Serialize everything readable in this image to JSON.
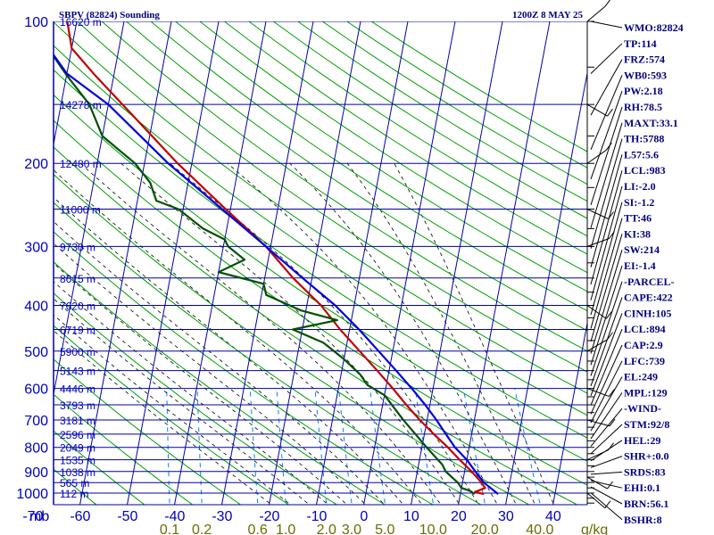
{
  "header": {
    "station": "SBPV (82824) Sounding",
    "time": "1200Z  8 MAY 25"
  },
  "indices": [
    "WMO:82824",
    "TP:114",
    "FRZ:574",
    "WB0:593",
    "PW:2.18",
    "RH:78.5",
    "MAXT:33.1",
    "TH:5788",
    "L57:5.6",
    "LCL:983",
    "LI:-2.0",
    "SI:-1.2",
    "TT:46",
    "KI:38",
    "SW:214",
    "EI:-1.4",
    "-PARCEL-",
    "CAPE:422",
    "CINH:105",
    "LCL:894",
    "CAP:2.9",
    "LFC:739",
    "EL:249",
    "MPL:129",
    "-WIND-",
    "STM:92/8",
    "HEL:29",
    "SHR+:0.0",
    "SRDS:83",
    "EHI:0.1",
    "BRN:56.1",
    "BSHR:8"
  ],
  "colors": {
    "isobar": "#0000a0",
    "isotherm": "#0000a0",
    "dry_adiabat": "#00a000",
    "moist_adiabat": "#000000",
    "mixing_ratio": "#0080ff",
    "temperature": "#c00000",
    "dewpoint": "#005000",
    "parcel": "#0000e0",
    "wind_barb": "#000000"
  },
  "chart_data": {
    "type": "skew-t log-p",
    "title": "SBPV (82824) Sounding",
    "xlabel": "",
    "ylabel": "mb",
    "pressure_levels": [
      100,
      200,
      300,
      400,
      500,
      600,
      700,
      800,
      900,
      1000
    ],
    "pressure_range": [
      100,
      1050
    ],
    "temperature_range": [
      -80,
      40
    ],
    "temperature_ticks": [
      -80,
      -70,
      -60,
      -50,
      -40,
      -30,
      -20,
      -10,
      0,
      10,
      20,
      30,
      40
    ],
    "height_labels": [
      {
        "p": 100,
        "label": "16620 m"
      },
      {
        "p": 150,
        "label": "14278 m"
      },
      {
        "p": 200,
        "label": "12480 m"
      },
      {
        "p": 250,
        "label": "11000 m"
      },
      {
        "p": 300,
        "label": "9730 m"
      },
      {
        "p": 350,
        "label": "8615 m"
      },
      {
        "p": 400,
        "label": "7620 m"
      },
      {
        "p": 450,
        "label": "6719 m"
      },
      {
        "p": 500,
        "label": "5900 m"
      },
      {
        "p": 550,
        "label": "5143 m"
      },
      {
        "p": 600,
        "label": "4446 m"
      },
      {
        "p": 650,
        "label": "3793 m"
      },
      {
        "p": 700,
        "label": "3181 m"
      },
      {
        "p": 750,
        "label": "2596 m"
      },
      {
        "p": 800,
        "label": "2049 m"
      },
      {
        "p": 850,
        "label": "1535 m"
      },
      {
        "p": 900,
        "label": "1038 m"
      },
      {
        "p": 950,
        "label": "565 m"
      },
      {
        "p": 1000,
        "label": "112 m"
      }
    ],
    "mixing_ratio_labels": [
      "0.1",
      "0.2",
      "0.6",
      "1.0",
      "2.0",
      "3.0",
      "5.0",
      "10.0",
      "20.0",
      "40.0"
    ],
    "mixing_ratio_values": [
      0.1,
      0.2,
      0.6,
      1.0,
      2.0,
      3.0,
      5.0,
      10.0,
      20.0,
      40.0
    ],
    "mixing_ratio_unit": "g/kg",
    "series": [
      {
        "name": "temperature",
        "points": [
          {
            "p": 100,
            "t": -82
          },
          {
            "p": 114,
            "t": -80
          },
          {
            "p": 130,
            "t": -74
          },
          {
            "p": 150,
            "t": -67
          },
          {
            "p": 200,
            "t": -53
          },
          {
            "p": 250,
            "t": -41
          },
          {
            "p": 300,
            "t": -31
          },
          {
            "p": 350,
            "t": -24
          },
          {
            "p": 400,
            "t": -17
          },
          {
            "p": 450,
            "t": -12
          },
          {
            "p": 500,
            "t": -7
          },
          {
            "p": 550,
            "t": -2.5
          },
          {
            "p": 600,
            "t": 1.5
          },
          {
            "p": 650,
            "t": 5
          },
          {
            "p": 700,
            "t": 8.5
          },
          {
            "p": 750,
            "t": 12
          },
          {
            "p": 800,
            "t": 15.5
          },
          {
            "p": 850,
            "t": 18.5
          },
          {
            "p": 900,
            "t": 21.5
          },
          {
            "p": 950,
            "t": 24
          },
          {
            "p": 975,
            "t": 25
          },
          {
            "p": 995,
            "t": 23
          },
          {
            "p": 1005,
            "t": 25
          }
        ]
      },
      {
        "name": "dewpoint",
        "points": [
          {
            "p": 100,
            "t": -85
          },
          {
            "p": 114,
            "t": -85
          },
          {
            "p": 130,
            "t": -80
          },
          {
            "p": 150,
            "t": -74
          },
          {
            "p": 175,
            "t": -70
          },
          {
            "p": 200,
            "t": -62
          },
          {
            "p": 220,
            "t": -58
          },
          {
            "p": 240,
            "t": -56
          },
          {
            "p": 250,
            "t": -51
          },
          {
            "p": 275,
            "t": -45
          },
          {
            "p": 290,
            "t": -40
          },
          {
            "p": 300,
            "t": -39
          },
          {
            "p": 320,
            "t": -35
          },
          {
            "p": 340,
            "t": -40
          },
          {
            "p": 360,
            "t": -30
          },
          {
            "p": 380,
            "t": -29
          },
          {
            "p": 410,
            "t": -21
          },
          {
            "p": 430,
            "t": -13
          },
          {
            "p": 450,
            "t": -22
          },
          {
            "p": 480,
            "t": -15
          },
          {
            "p": 520,
            "t": -10
          },
          {
            "p": 560,
            "t": -6
          },
          {
            "p": 590,
            "t": -4
          },
          {
            "p": 620,
            "t": 0
          },
          {
            "p": 700,
            "t": 5
          },
          {
            "p": 800,
            "t": 11
          },
          {
            "p": 870,
            "t": 15
          },
          {
            "p": 900,
            "t": 16
          },
          {
            "p": 950,
            "t": 19
          },
          {
            "p": 975,
            "t": 20
          },
          {
            "p": 990,
            "t": 22
          },
          {
            "p": 1005,
            "t": 23
          }
        ]
      },
      {
        "name": "parcel",
        "points": [
          {
            "p": 100,
            "t": -90
          },
          {
            "p": 129,
            "t": -80
          },
          {
            "p": 150,
            "t": -70
          },
          {
            "p": 200,
            "t": -55
          },
          {
            "p": 249,
            "t": -42
          },
          {
            "p": 300,
            "t": -31
          },
          {
            "p": 350,
            "t": -22
          },
          {
            "p": 400,
            "t": -14
          },
          {
            "p": 450,
            "t": -8
          },
          {
            "p": 500,
            "t": -3
          },
          {
            "p": 550,
            "t": 1.5
          },
          {
            "p": 600,
            "t": 5.5
          },
          {
            "p": 650,
            "t": 9
          },
          {
            "p": 700,
            "t": 12
          },
          {
            "p": 739,
            "t": 14
          },
          {
            "p": 800,
            "t": 17
          },
          {
            "p": 850,
            "t": 20
          },
          {
            "p": 894,
            "t": 22
          },
          {
            "p": 950,
            "t": 24.5
          },
          {
            "p": 1005,
            "t": 28
          }
        ]
      }
    ],
    "wind_profile_pressures": [
      100,
      150,
      200,
      250,
      300,
      400,
      500,
      600,
      700,
      850,
      925,
      1000
    ]
  }
}
